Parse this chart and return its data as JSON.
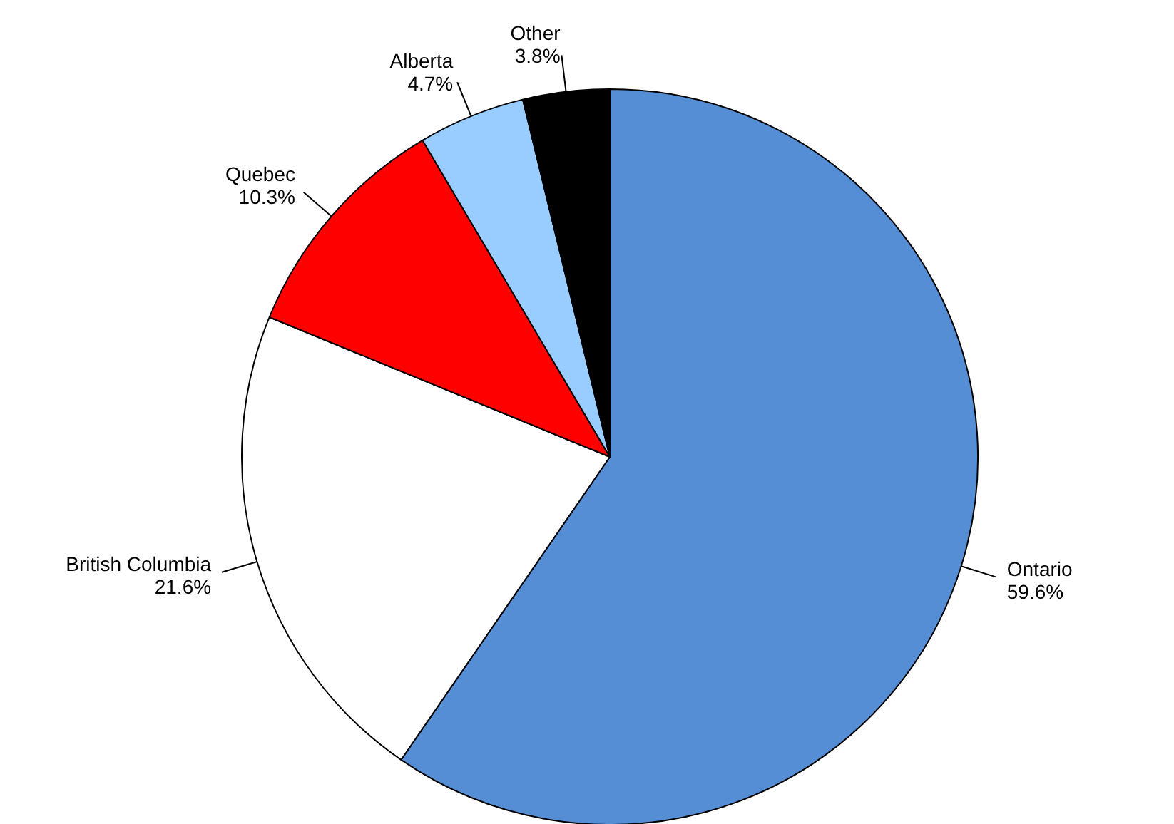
{
  "chart_data": {
    "type": "pie",
    "categories": [
      "Ontario",
      "British Columbia",
      "Quebec",
      "Alberta",
      "Other"
    ],
    "values": [
      59.6,
      21.6,
      10.3,
      4.7,
      3.8
    ],
    "colors": [
      "#558ed5",
      "#ffffff",
      "#ff0000",
      "#99ccff",
      "#000000"
    ],
    "value_labels": [
      "59.6%",
      "21.6%",
      "10.3%",
      "4.7%",
      "3.8%"
    ]
  }
}
